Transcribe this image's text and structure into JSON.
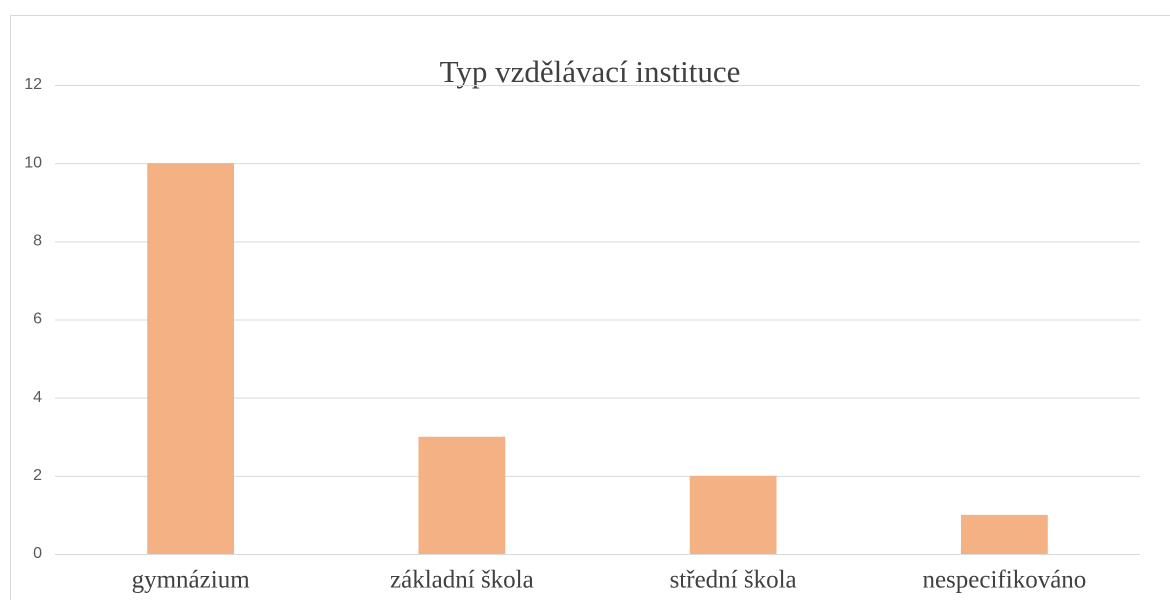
{
  "chart_data": {
    "type": "bar",
    "title": "Typ vzdělávací instituce",
    "categories": [
      "gymnázium",
      "základní škola",
      "střední škola",
      "nespecifikováno"
    ],
    "values": [
      10,
      3,
      2,
      1
    ],
    "color": "#f4b183",
    "ylim": [
      0,
      12
    ],
    "yticks": [
      0,
      2,
      4,
      6,
      8,
      10,
      12
    ],
    "grid": true
  }
}
